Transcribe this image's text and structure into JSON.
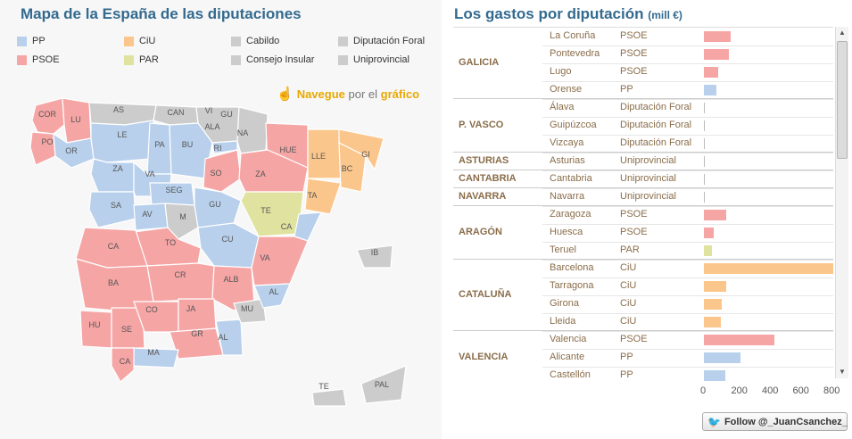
{
  "left_title": "Mapa de la España de las diputaciones",
  "right_title": "Los gastos por diputación",
  "right_unit": "(mill €)",
  "legend": [
    {
      "label": "PP",
      "color": "#b8d0ec"
    },
    {
      "label": "CiU",
      "color": "#fbc68c"
    },
    {
      "label": "Cabildo",
      "color": "#cccccc"
    },
    {
      "label": "Diputación Foral",
      "color": "#cccccc"
    },
    {
      "label": "PSOE",
      "color": "#f6a5a5"
    },
    {
      "label": "PAR",
      "color": "#e0e39f"
    },
    {
      "label": "Consejo Insular",
      "color": "#cccccc"
    },
    {
      "label": "Uniprovincial",
      "color": "#cccccc"
    }
  ],
  "nav": {
    "icon": "hand-pointer-icon",
    "w1": "Navegue",
    "w2": "por el",
    "w3": "gráfico"
  },
  "map_labels": [
    "COR",
    "LU",
    "PO",
    "OR",
    "AS",
    "LE",
    "CAN",
    "VI",
    "GU",
    "ALA",
    "NA",
    "PA",
    "BU",
    "RI",
    "HUE",
    "LLE",
    "GI",
    "BC",
    "ZA",
    "VA",
    "SO",
    "ZA",
    "TA",
    "SA",
    "SEG",
    "AV",
    "M",
    "GU",
    "TE",
    "CA",
    "CU",
    "TO",
    "CA",
    "BA",
    "CR",
    "VA",
    "ALB",
    "AL",
    "CO",
    "JA",
    "MU",
    "HU",
    "SE",
    "GR",
    "AL",
    "MA",
    "CA",
    "IB",
    "TE",
    "PAL"
  ],
  "colors": {
    "pp": "#b8d0ec",
    "psoe": "#f6a5a5",
    "ciu": "#fbc68c",
    "par": "#e0e39f",
    "other": "#cccccc",
    "title": "#336a8f"
  },
  "chart_data": {
    "type": "bar",
    "title": "Los gastos por diputación",
    "unit": "(mill €)",
    "xlim": [
      0,
      800
    ],
    "xticks": [
      "0",
      "200",
      "400",
      "600",
      "800"
    ],
    "groups": [
      {
        "region": "GALICIA",
        "rows": [
          {
            "province": "La Coruña",
            "party": "PSOE",
            "value": 175
          },
          {
            "province": "Pontevedra",
            "party": "PSOE",
            "value": 160
          },
          {
            "province": "Lugo",
            "party": "PSOE",
            "value": 90
          },
          {
            "province": "Orense",
            "party": "PP",
            "value": 80
          }
        ]
      },
      {
        "region": "P. VASCO",
        "rows": [
          {
            "province": "Álava",
            "party": "Diputación Foral",
            "value": 0
          },
          {
            "province": "Guipúzcoa",
            "party": "Diputación Foral",
            "value": 0
          },
          {
            "province": "Vizcaya",
            "party": "Diputación Foral",
            "value": 0
          }
        ]
      },
      {
        "region": "ASTURIAS",
        "rows": [
          {
            "province": "Asturias",
            "party": "Uniprovincial",
            "value": 0
          }
        ]
      },
      {
        "region": "CANTABRIA",
        "rows": [
          {
            "province": "Cantabria",
            "party": "Uniprovincial",
            "value": 0
          }
        ]
      },
      {
        "region": "NAVARRA",
        "rows": [
          {
            "province": "Navarra",
            "party": "Uniprovincial",
            "value": 0
          }
        ]
      },
      {
        "region": "ARAGÓN",
        "rows": [
          {
            "province": "Zaragoza",
            "party": "PSOE",
            "value": 145
          },
          {
            "province": "Huesca",
            "party": "PSOE",
            "value": 65
          },
          {
            "province": "Teruel",
            "party": "PAR",
            "value": 55
          }
        ]
      },
      {
        "region": "CATALUÑA",
        "rows": [
          {
            "province": "Barcelona",
            "party": "CiU",
            "value": 840
          },
          {
            "province": "Tarragona",
            "party": "CiU",
            "value": 145
          },
          {
            "province": "Girona",
            "party": "CiU",
            "value": 115
          },
          {
            "province": "Lleida",
            "party": "CiU",
            "value": 110
          }
        ]
      },
      {
        "region": "VALENCIA",
        "rows": [
          {
            "province": "Valencia",
            "party": "PSOE",
            "value": 460
          },
          {
            "province": "Alicante",
            "party": "PP",
            "value": 240
          },
          {
            "province": "Castellón",
            "party": "PP",
            "value": 140
          }
        ]
      }
    ]
  },
  "follow": {
    "icon": "twitter-bird-icon",
    "label": "Follow @_JuanCsanchez_"
  }
}
